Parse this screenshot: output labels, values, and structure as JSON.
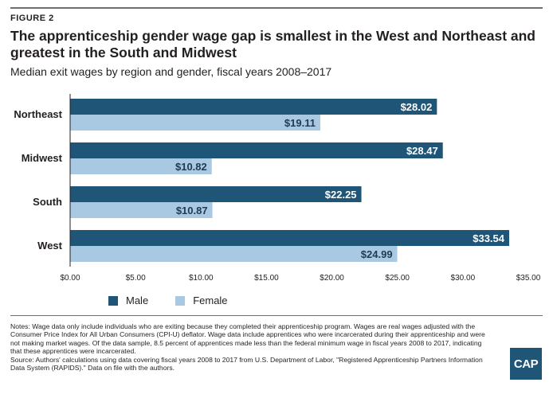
{
  "header": {
    "figure_label": "FIGURE 2",
    "title": "The apprenticeship gender wage gap is smallest in the West and Northeast and greatest in the South and Midwest",
    "subtitle": "Median exit wages by region and gender, fiscal years 2008–2017"
  },
  "chart_data": {
    "type": "bar",
    "orientation": "horizontal",
    "categories": [
      "Northeast",
      "Midwest",
      "South",
      "West"
    ],
    "series": [
      {
        "name": "Male",
        "values": [
          28.02,
          28.47,
          22.25,
          33.54
        ],
        "labels": [
          "$28.02",
          "$28.47",
          "$22.25",
          "$33.54"
        ],
        "color": "#1f5577"
      },
      {
        "name": "Female",
        "values": [
          19.11,
          10.82,
          10.87,
          24.99
        ],
        "labels": [
          "$19.11",
          "$10.82",
          "$10.87",
          "$24.99"
        ],
        "color": "#a9c9e3"
      }
    ],
    "xlim": [
      0,
      35
    ],
    "ticks": [
      0,
      5,
      10,
      15,
      20,
      25,
      30,
      35
    ],
    "tick_labels": [
      "$0.00",
      "$5.00",
      "$10.00",
      "$15.00",
      "$20.00",
      "$25.00",
      "$30.00",
      "$35.00"
    ],
    "legend_position": "bottom-left",
    "grid": false
  },
  "legend": {
    "male_label": "Male",
    "female_label": "Female"
  },
  "notes": {
    "notes_text": "Notes: Wage data only include individuals who are exiting because they completed their apprenticeship program. Wages are real wages adjusted with the Consumer Price Index for All Urban Consumers (CPI-U) deflator. Wage data include apprentices who were incarcerated during their apprenticeship and were not making market wages. Of the data sample, 8.5 percent of apprentices made less than the federal minimum wage in fiscal years 2008 to 2017, indicating that these apprentices were incarcerated.",
    "source_text": "Source: Authors' calculations using data covering fiscal years 2008 to 2017 from U.S. Department of Labor, \"Registered Apprenticeship Partners Information Data System (RAPIDS).\" Data on file with the authors."
  },
  "logo": {
    "text": "CAP"
  }
}
